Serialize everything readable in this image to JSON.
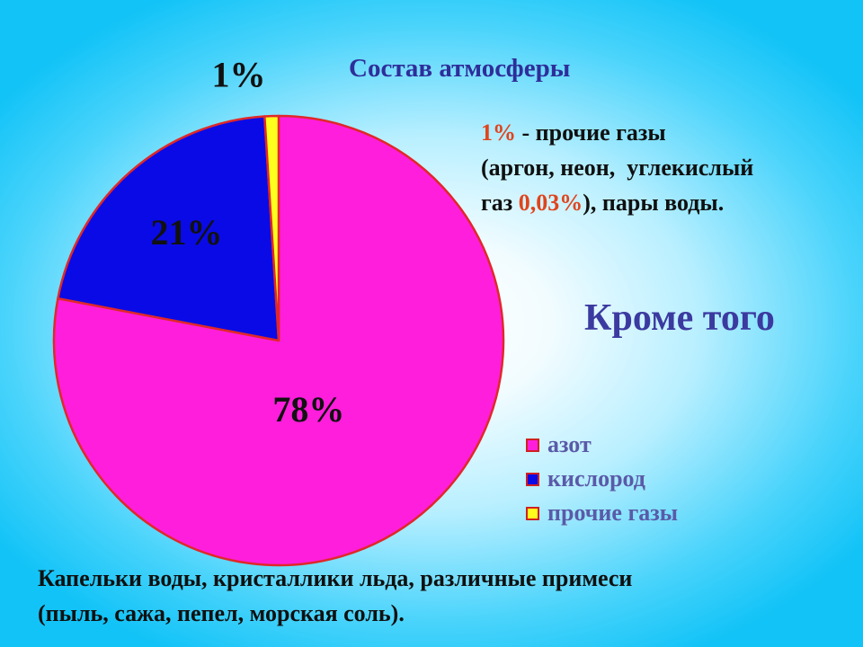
{
  "title": "Состав атмосферы",
  "note": {
    "line1_pct": "1%",
    "line1_rest": " - прочие газы",
    "line2": "(аргон, неон,  углекислый",
    "line3_pre": "газ ",
    "line3_pct": "0,03%",
    "line3_post": "), пары воды."
  },
  "also": "Кроме того",
  "bottom_line1": "Капельки воды, кристаллики льда, различные примеси",
  "bottom_line2": "(пыль, сажа, пепел, морская соль).",
  "chart_data": {
    "type": "pie",
    "title": "Состав атмосферы",
    "legend_position": "right",
    "slices": [
      {
        "name": "азот",
        "value": 78,
        "label": "78%",
        "color": "#ff1edc"
      },
      {
        "name": "кислород",
        "value": 21,
        "label": "21%",
        "color": "#0a0ae6"
      },
      {
        "name": "прочие газы",
        "value": 1,
        "label": "1%",
        "color": "#ffff1e"
      }
    ],
    "edge_color": "#e02828"
  }
}
